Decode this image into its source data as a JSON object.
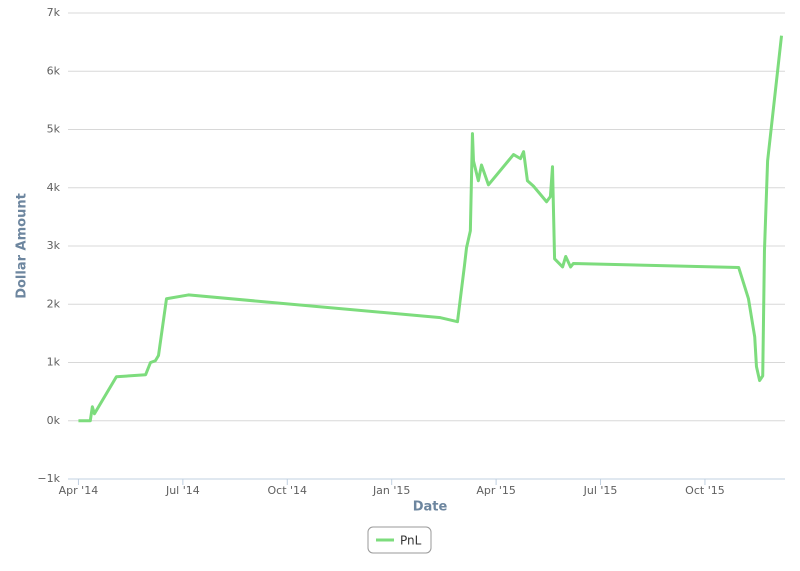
{
  "chart_data": {
    "type": "line",
    "xlabel": "Date",
    "ylabel": "Dollar Amount",
    "x": [
      0,
      0.34,
      0.4,
      0.46,
      1.09,
      1.93,
      2.07,
      2.21,
      2.3,
      2.53,
      3.16,
      10.4,
      10.89,
      11.09,
      11.15,
      11.26,
      11.32,
      11.35,
      11.49,
      11.58,
      11.78,
      12.5,
      12.7,
      12.79,
      12.9,
      13.07,
      13.45,
      13.56,
      13.62,
      13.68,
      13.91,
      14.0,
      14.14,
      14.22,
      18.97,
      19.25,
      19.43,
      19.48,
      19.57,
      19.66,
      19.71,
      19.8,
      20.2
    ],
    "series": [
      {
        "name": "PnL",
        "color": "#7ddc7d",
        "values": [
          0,
          0,
          240,
          120,
          755,
          790,
          1000,
          1030,
          1120,
          2095,
          2160,
          1770,
          1700,
          2660,
          2970,
          3260,
          4930,
          4460,
          4120,
          4390,
          4050,
          4570,
          4500,
          4620,
          4120,
          4030,
          3760,
          3850,
          4360,
          2780,
          2640,
          2820,
          2640,
          2700,
          2630,
          2095,
          1440,
          930,
          690,
          770,
          2920,
          4460,
          6610
        ]
      }
    ],
    "xlim": [
      -0.3,
      20.3
    ],
    "xticks": [
      {
        "value": 0,
        "label": "Apr '14"
      },
      {
        "value": 3,
        "label": "Jul '14"
      },
      {
        "value": 6,
        "label": "Oct '14"
      },
      {
        "value": 9,
        "label": "Jan '15"
      },
      {
        "value": 12,
        "label": "Apr '15"
      },
      {
        "value": 15,
        "label": "Jul '15"
      },
      {
        "value": 18,
        "label": "Oct '15"
      }
    ],
    "ylim": [
      -1000,
      7000
    ],
    "yticks": [
      {
        "value": -1000,
        "label": "−1k"
      },
      {
        "value": 0,
        "label": "0k"
      },
      {
        "value": 1000,
        "label": "1k"
      },
      {
        "value": 2000,
        "label": "2k"
      },
      {
        "value": 3000,
        "label": "3k"
      },
      {
        "value": 4000,
        "label": "4k"
      },
      {
        "value": 5000,
        "label": "5k"
      },
      {
        "value": 6000,
        "label": "6k"
      },
      {
        "value": 7000,
        "label": "7k"
      }
    ],
    "grid": true
  }
}
